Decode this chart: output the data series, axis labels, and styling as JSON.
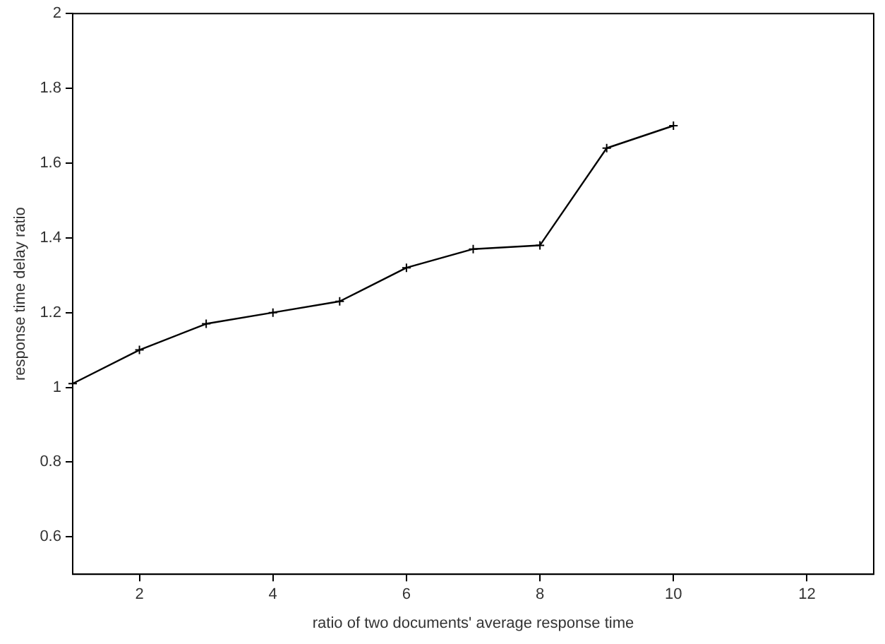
{
  "chart_data": {
    "type": "line",
    "xlabel": "ratio of two documents' average response time",
    "ylabel": "response time delay ratio",
    "x": [
      1,
      2,
      3,
      4,
      5,
      6,
      7,
      8,
      9,
      10
    ],
    "series": [
      {
        "color": "#000000",
        "values": [
          1.01,
          1.1,
          1.17,
          1.2,
          1.23,
          1.32,
          1.37,
          1.38,
          1.64,
          1.7
        ]
      }
    ],
    "xlim": [
      1,
      13
    ],
    "xticks": [
      2,
      4,
      6,
      8,
      10,
      12
    ],
    "ylim": [
      0.5,
      2
    ],
    "yticks": [
      0.6,
      0.8,
      1,
      1.2,
      1.4,
      1.6,
      1.8,
      2
    ],
    "grid": false,
    "legend": false,
    "marker": "cross",
    "line_style": "solid"
  }
}
